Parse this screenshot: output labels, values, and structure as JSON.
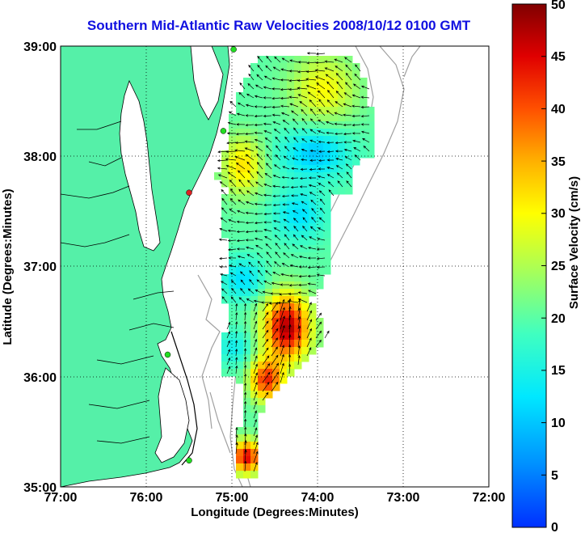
{
  "title": "Southern Mid-Atlantic Raw Velocities 2008/10/12 0100 GMT",
  "x_axis": {
    "label": "Longitude (Degrees:Minutes)",
    "ticks": [
      "77:00",
      "76:00",
      "75:00",
      "74:00",
      "73:00",
      "72:00"
    ]
  },
  "y_axis": {
    "label": "Latitude (Degrees:Minutes)",
    "ticks": [
      "39:00",
      "38:00",
      "37:00",
      "36:00",
      "35:00"
    ]
  },
  "colorbar": {
    "label": "Surface Velocity (cm/s)",
    "ticks": [
      "50",
      "45",
      "40",
      "35",
      "30",
      "25",
      "20",
      "15",
      "10",
      "5",
      "0"
    ],
    "range": [
      0,
      50
    ]
  },
  "map_extent": {
    "lon": [
      -77,
      -72
    ],
    "lat": [
      35,
      39
    ]
  },
  "colors": {
    "land": "#55f0a8",
    "water": "#ffffff",
    "title": "#1010e0",
    "arrows": "#000000",
    "bathymetry": "#a0a0a0",
    "station_green": "#22dd22",
    "station_red": "#dd2222"
  },
  "grid": "dotted",
  "stations": [
    {
      "color": "green",
      "lon": -74.98,
      "lat": 38.97
    },
    {
      "color": "green",
      "lon": -75.1,
      "lat": 38.23
    },
    {
      "color": "red",
      "lon": -75.5,
      "lat": 37.67
    },
    {
      "color": "green",
      "lon": -75.75,
      "lat": 36.2
    },
    {
      "color": "green",
      "lon": -75.5,
      "lat": 35.24
    }
  ]
}
